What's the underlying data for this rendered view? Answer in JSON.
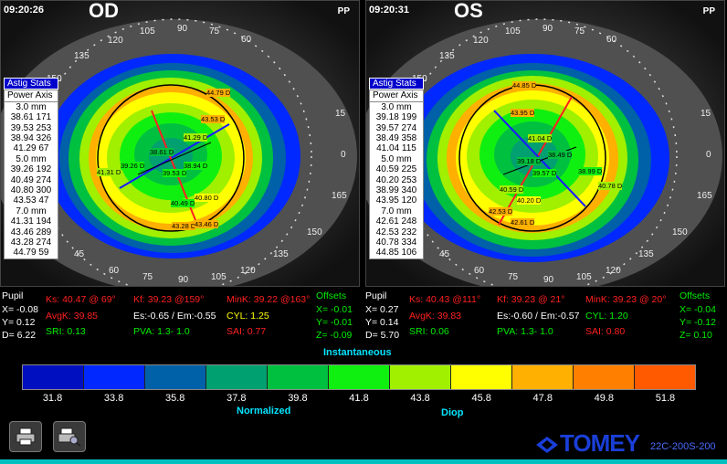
{
  "od": {
    "time": "09:20:26",
    "eye": "OD",
    "pp": "PP",
    "astig_title": "Astig Stats",
    "astig_subtitle": "Power Axis",
    "astig_rows": [
      "3.0 mm",
      "38.61 171",
      "39.53 253",
      "38.94 326",
      "41.29 67",
      "5.0 mm",
      "39.26 192",
      "40.49 274",
      "40.80 300",
      "43.53 47",
      "7.0 mm",
      "41.31 194",
      "43.46 289",
      "43.28 274",
      "44.79 59"
    ],
    "map_labels": [
      "44.79 D",
      "43.53 D",
      "41.29 D",
      "38.61 D",
      "39.26 D",
      "38.94 D",
      "39.53 D",
      "41.31 D",
      "40.49 D",
      "40.80 D",
      "43.28 D",
      "43.46 D"
    ],
    "axis_ticks": [
      "120",
      "105",
      "90",
      "75",
      "60",
      "135",
      "150",
      "15",
      "0",
      "165",
      "150",
      "135",
      "45",
      "60",
      "75",
      "90",
      "105",
      "120"
    ],
    "pupil_label": "Pupil",
    "pupil_x": "X= -0.08",
    "pupil_y": "Y= 0.12",
    "pupil_d": "D= 6.22",
    "ks": "Ks: 40.47 @ 69°",
    "kf": "Kf: 39.23 @159°",
    "mink": "MinK: 39.22 @163°",
    "avgk": "AvgK: 39.85",
    "es_em": "Es:-0.65 / Em:-0.55",
    "cyl": "CYL:  1.25",
    "sri": "SRI: 0.13",
    "pva": "PVA:  1.3-  1.0",
    "sai": "SAI: 0.77",
    "offsets_label": "Offsets",
    "off_x": "X= -0.01",
    "off_y": "Y= -0.01",
    "off_z": "Z= -0.09"
  },
  "os": {
    "time": "09:20:31",
    "eye": "OS",
    "pp": "PP",
    "astig_title": "Astig Stats",
    "astig_subtitle": "Power Axis",
    "astig_rows": [
      "3.0 mm",
      "39.18 199",
      "39.57 274",
      "38.49 358",
      "41.04 115",
      "5.0 mm",
      "40.59 225",
      "40.20 253",
      "38.99 340",
      "43.95 120",
      "7.0 mm",
      "42.61 248",
      "42.53 232",
      "40.78 334",
      "44.85 106"
    ],
    "map_labels": [
      "44.85 D",
      "43.95 D",
      "41.04 D",
      "39.18 D",
      "38.49 D",
      "39.57 D",
      "38.99 D",
      "40.59 D",
      "40.78 D",
      "40.20 D",
      "42.53 D",
      "42.61 D"
    ],
    "axis_ticks": [
      "120",
      "105",
      "90",
      "75",
      "60",
      "135",
      "150",
      "15",
      "0",
      "165",
      "150",
      "135",
      "45",
      "60",
      "75",
      "90",
      "105",
      "120"
    ],
    "pupil_label": "Pupil",
    "pupil_x": "X=  0.27",
    "pupil_y": "Y=  0.14",
    "pupil_d": "D=  5.70",
    "ks": "Ks: 40.43 @111°",
    "kf": "Kf: 39.23 @ 21°",
    "mink": "MinK: 39.23 @ 20°",
    "avgk": "AvgK: 39.83",
    "es_em": "Es:-0.60 / Em:-0.57",
    "cyl": "CYL:  1.20",
    "sri": "SRI: 0.06",
    "pva": "PVA:  1.3-  1.0",
    "sai": "SAI: 0.80",
    "offsets_label": "Offsets",
    "off_x": "X= -0.04",
    "off_y": "Y= -0.12",
    "off_z": "Z=  0.10"
  },
  "scale": {
    "title": "Instantaneous",
    "left_label": "Normalized",
    "right_label": "Diop",
    "colors": [
      "#0010c0",
      "#0028ff",
      "#0060a8",
      "#00a070",
      "#00c040",
      "#10f010",
      "#a0f000",
      "#ffff00",
      "#ffb000",
      "#ff8000",
      "#ff5a00"
    ],
    "ticks": [
      "31.8",
      "33.8",
      "35.8",
      "37.8",
      "39.8",
      "41.8",
      "43.8",
      "45.8",
      "47.8",
      "49.8",
      "51.8"
    ]
  },
  "footer": {
    "logo": "TOMEY",
    "model": "22C-200S-200",
    "print_icon": "printer-icon",
    "preview_icon": "print-preview-icon"
  }
}
